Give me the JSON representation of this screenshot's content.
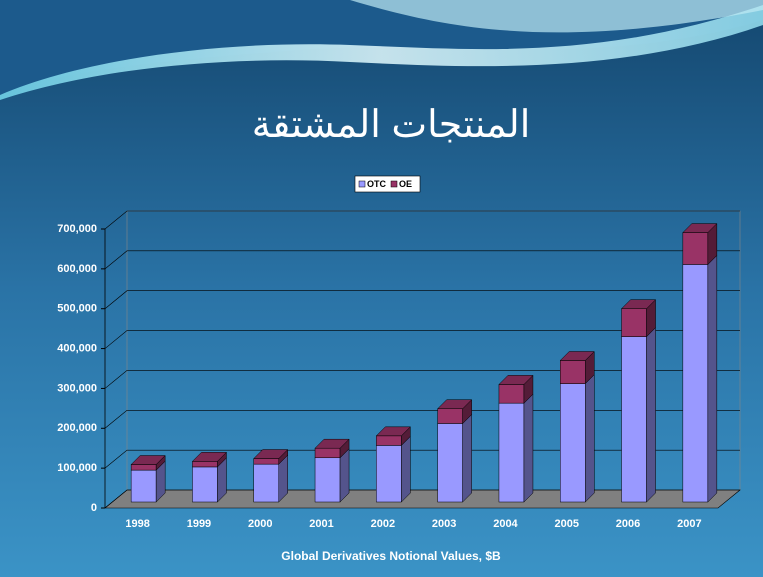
{
  "chart_data": {
    "type": "bar",
    "stacked": true,
    "title": "المنتجات المشتقة",
    "x_label": "Global Derivatives Notional Values, $B",
    "categories": [
      "1998",
      "1999",
      "2000",
      "2001",
      "2002",
      "2003",
      "2004",
      "2005",
      "2006",
      "2007"
    ],
    "series": [
      {
        "name": "OTC",
        "color": "#9999ff",
        "values": [
          80000,
          88000,
          95000,
          111000,
          142000,
          197000,
          248000,
          297000,
          415000,
          596000
        ]
      },
      {
        "name": "OE",
        "color": "#993366",
        "values": [
          14000,
          14000,
          14000,
          24000,
          24000,
          37000,
          47000,
          58000,
          70000,
          80000
        ]
      }
    ],
    "ylim": [
      0,
      700000
    ],
    "yticks": [
      0,
      {
        "value": 100000,
        "label": "100,000"
      },
      {
        "value": 200000,
        "label": "200,000"
      },
      {
        "value": 300000,
        "label": "300,000"
      },
      {
        "value": 400000,
        "label": "400,000"
      },
      {
        "value": 500000,
        "label": "500,000"
      },
      {
        "value": 600000,
        "label": "600,000"
      },
      {
        "value": 700000,
        "label": "700,000"
      }
    ],
    "grid": true,
    "legend": "top"
  }
}
